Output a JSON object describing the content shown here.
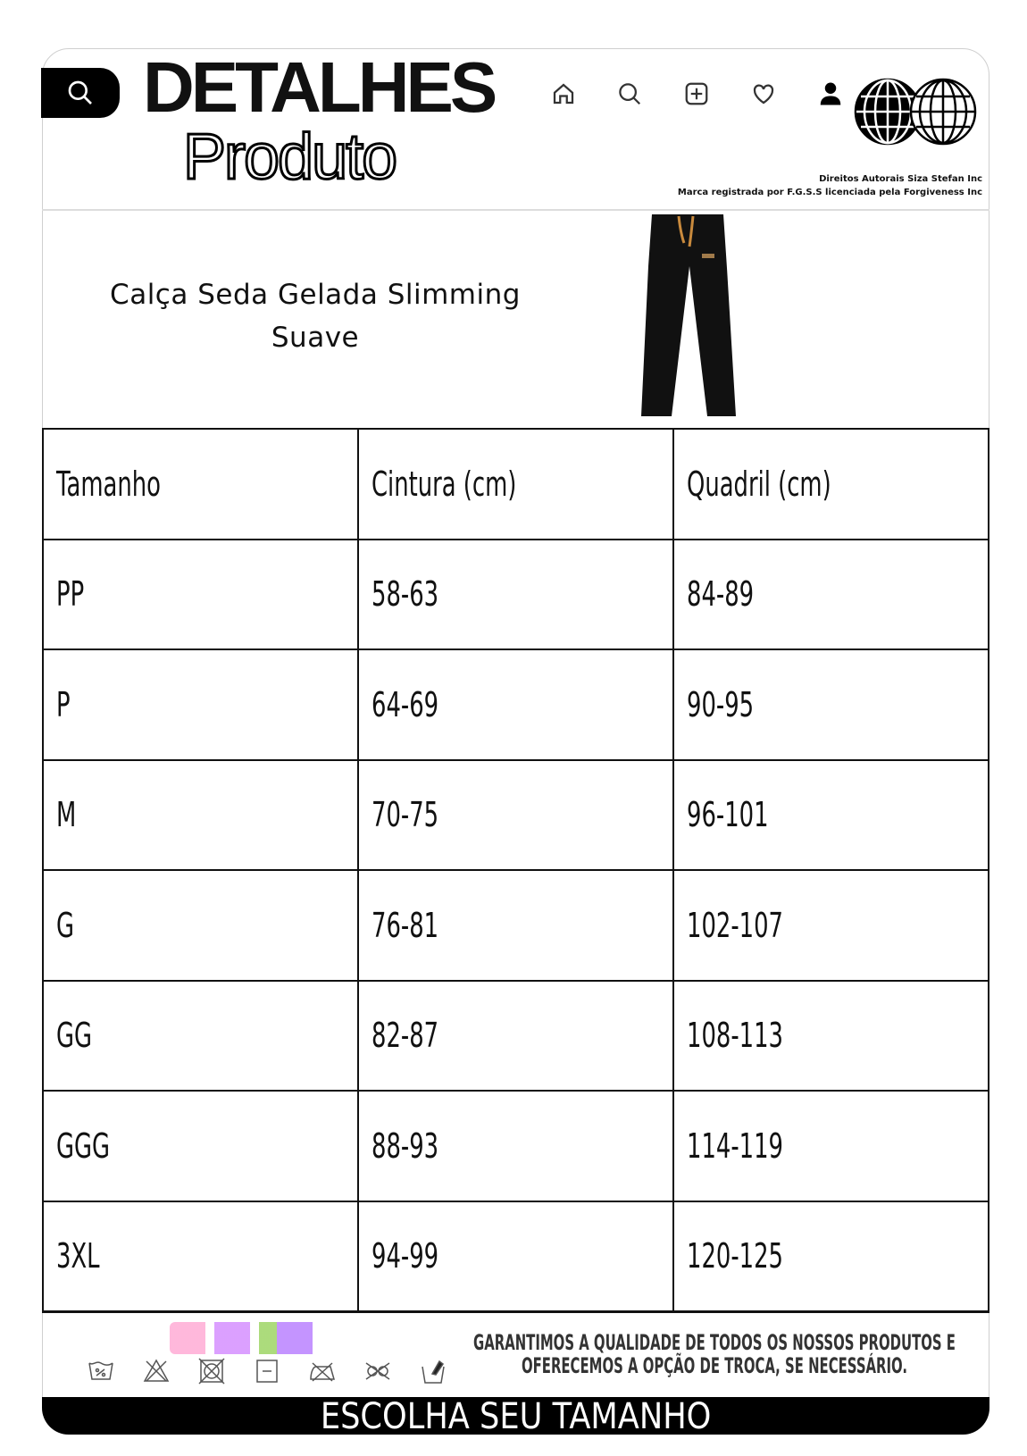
{
  "header": {
    "title_line1": "DETALHES",
    "title_line2": "Produto",
    "icons": [
      "search-icon",
      "home-icon",
      "search-icon",
      "add-square-icon",
      "heart-icon",
      "user-icon",
      "globe-logo"
    ],
    "copyright_line1": "Direitos Autorais Siza Stefan Inc",
    "copyright_line2": "Marca registrada por F.G.S.S licenciada pela Forgiveness Inc"
  },
  "product": {
    "name": "Calça Seda Gelada Slimming Suave",
    "image": "black-wide-leg-pants"
  },
  "size_table": {
    "headers": [
      "Tamanho",
      "Cintura (cm)",
      "Quadril (cm)"
    ],
    "rows": [
      [
        "PP",
        "58-63",
        "84-89"
      ],
      [
        "P",
        "64-69",
        "90-95"
      ],
      [
        "M",
        "70-75",
        "96-101"
      ],
      [
        "G",
        "76-81",
        "102-107"
      ],
      [
        "GG",
        "82-87",
        "108-113"
      ],
      [
        "GGG",
        "88-93",
        "114-119"
      ],
      [
        "3XL",
        "94-99",
        "120-125"
      ]
    ]
  },
  "footer": {
    "care_icons": [
      "wash-30-icon",
      "no-bleach-icon",
      "no-tumble-dry-icon",
      "dry-flat-icon",
      "no-iron-icon",
      "no-dry-clean-icon",
      "hand-wash-icon"
    ],
    "guarantee_line1": "GARANTIMOS A QUALIDADE DE TODOS OS NOSSOS PRODUTOS E",
    "guarantee_line2": "OFERECEMOS A OPÇÃO DE TROCA, SE NECESSÁRIO.",
    "cta": "ESCOLHA SEU TAMANHO"
  }
}
